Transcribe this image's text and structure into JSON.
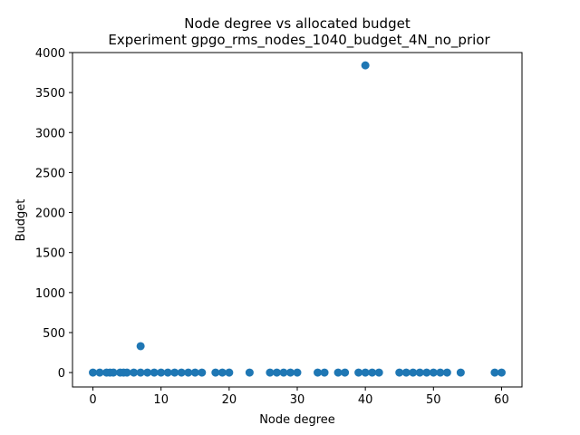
{
  "chart_data": {
    "type": "scatter",
    "title": "Node degree vs allocated budget",
    "subtitle": "Experiment gpgo_rms_nodes_1040_budget_4N_no_prior",
    "xlabel": "Node degree",
    "ylabel": "Budget",
    "xlim": [
      -3,
      63
    ],
    "ylim": [
      -180,
      4000
    ],
    "xticks": [
      0,
      10,
      20,
      30,
      40,
      50,
      60
    ],
    "yticks": [
      0,
      500,
      1000,
      1500,
      2000,
      2500,
      3000,
      3500,
      4000
    ],
    "grid": false,
    "marker_color": "#1f77b4",
    "points": [
      {
        "x": 0,
        "y": 0
      },
      {
        "x": 1,
        "y": 0
      },
      {
        "x": 2,
        "y": 0
      },
      {
        "x": 2.5,
        "y": 0
      },
      {
        "x": 3,
        "y": 0
      },
      {
        "x": 4,
        "y": 0
      },
      {
        "x": 4.5,
        "y": 0
      },
      {
        "x": 5,
        "y": 0
      },
      {
        "x": 6,
        "y": 0
      },
      {
        "x": 7,
        "y": 330
      },
      {
        "x": 7,
        "y": 0
      },
      {
        "x": 8,
        "y": 0
      },
      {
        "x": 9,
        "y": 0
      },
      {
        "x": 10,
        "y": 0
      },
      {
        "x": 11,
        "y": 0
      },
      {
        "x": 12,
        "y": 0
      },
      {
        "x": 13,
        "y": 0
      },
      {
        "x": 14,
        "y": 0
      },
      {
        "x": 15,
        "y": 0
      },
      {
        "x": 16,
        "y": 0
      },
      {
        "x": 18,
        "y": 0
      },
      {
        "x": 19,
        "y": 0
      },
      {
        "x": 20,
        "y": 0
      },
      {
        "x": 23,
        "y": 0
      },
      {
        "x": 26,
        "y": 0
      },
      {
        "x": 27,
        "y": 0
      },
      {
        "x": 28,
        "y": 0
      },
      {
        "x": 29,
        "y": 0
      },
      {
        "x": 30,
        "y": 0
      },
      {
        "x": 33,
        "y": 0
      },
      {
        "x": 34,
        "y": 0
      },
      {
        "x": 36,
        "y": 0
      },
      {
        "x": 37,
        "y": 0
      },
      {
        "x": 39,
        "y": 0
      },
      {
        "x": 40,
        "y": 3840
      },
      {
        "x": 40,
        "y": 0
      },
      {
        "x": 41,
        "y": 0
      },
      {
        "x": 42,
        "y": 0
      },
      {
        "x": 45,
        "y": 0
      },
      {
        "x": 46,
        "y": 0
      },
      {
        "x": 47,
        "y": 0
      },
      {
        "x": 48,
        "y": 0
      },
      {
        "x": 49,
        "y": 0
      },
      {
        "x": 50,
        "y": 0
      },
      {
        "x": 51,
        "y": 0
      },
      {
        "x": 52,
        "y": 0
      },
      {
        "x": 54,
        "y": 0
      },
      {
        "x": 59,
        "y": 0
      },
      {
        "x": 60,
        "y": 0
      }
    ]
  }
}
